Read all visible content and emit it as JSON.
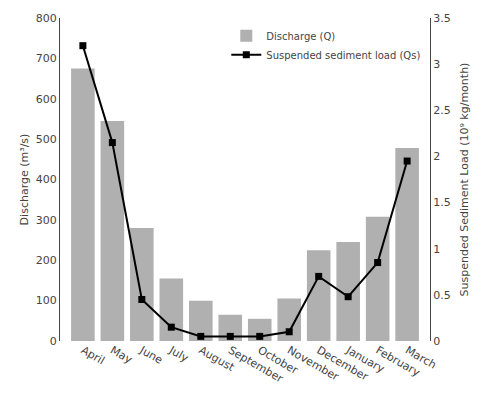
{
  "chart_data": {
    "type": "bar",
    "categories": [
      "April",
      "May",
      "June",
      "July",
      "August",
      "September",
      "October",
      "November",
      "December",
      "January",
      "February",
      "March"
    ],
    "series": [
      {
        "name": "Discharge (Q)",
        "type": "bar",
        "color": "#b0b0b0",
        "values": [
          675,
          545,
          280,
          155,
          100,
          65,
          55,
          105,
          225,
          245,
          308,
          478
        ]
      },
      {
        "name": "Suspended sediment load (Qs)",
        "type": "line",
        "axis": "y2",
        "color": "#000000",
        "marker": "square",
        "line_style": "solid",
        "values": [
          3.2,
          2.15,
          0.45,
          0.15,
          0.05,
          0.05,
          0.05,
          0.1,
          0.7,
          0.48,
          0.85,
          1.95
        ]
      }
    ],
    "ylabel": "Discharge (m³/s)",
    "y2label": "Suspended Sediment Load (10⁹ kg/month)",
    "ylim": [
      0,
      800
    ],
    "yticks": [
      0,
      100,
      200,
      300,
      400,
      500,
      600,
      700,
      800
    ],
    "y2lim": [
      0,
      3.5
    ],
    "y2ticks": [
      0,
      0.5,
      1,
      1.5,
      2,
      2.5,
      3,
      3.5
    ],
    "legend": "upper right",
    "grid": false
  }
}
